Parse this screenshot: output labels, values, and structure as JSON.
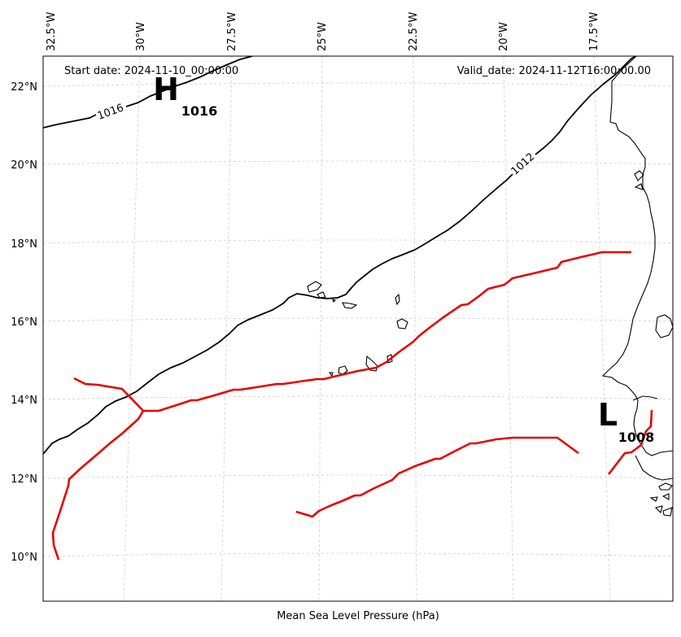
{
  "header": {
    "start_date": "Start date: 2024-11-10_00:00:00",
    "valid_date": "Valid_date: 2024-11-12T16:00:00.00"
  },
  "caption": "Mean Sea Level Pressure (hPa)",
  "axes": {
    "lon_ticks": [
      "32.5°W",
      "30°W",
      "27.5°W",
      "25°W",
      "22.5°W",
      "20°W",
      "17.5°W"
    ],
    "lat_ticks": [
      "22°N",
      "20°N",
      "18°N",
      "16°N",
      "14°N",
      "12°N",
      "10°N"
    ]
  },
  "isobars": [
    {
      "value": "1016",
      "color": "#000000"
    },
    {
      "value": "1012",
      "color": "#000000"
    }
  ],
  "pressure_centers": [
    {
      "type": "H",
      "value": "1016"
    },
    {
      "type": "L",
      "value": "1008"
    }
  ],
  "colors": {
    "isobar": "#000000",
    "trough": "#e60000",
    "coast": "#000000",
    "grid": "#cccccc"
  }
}
